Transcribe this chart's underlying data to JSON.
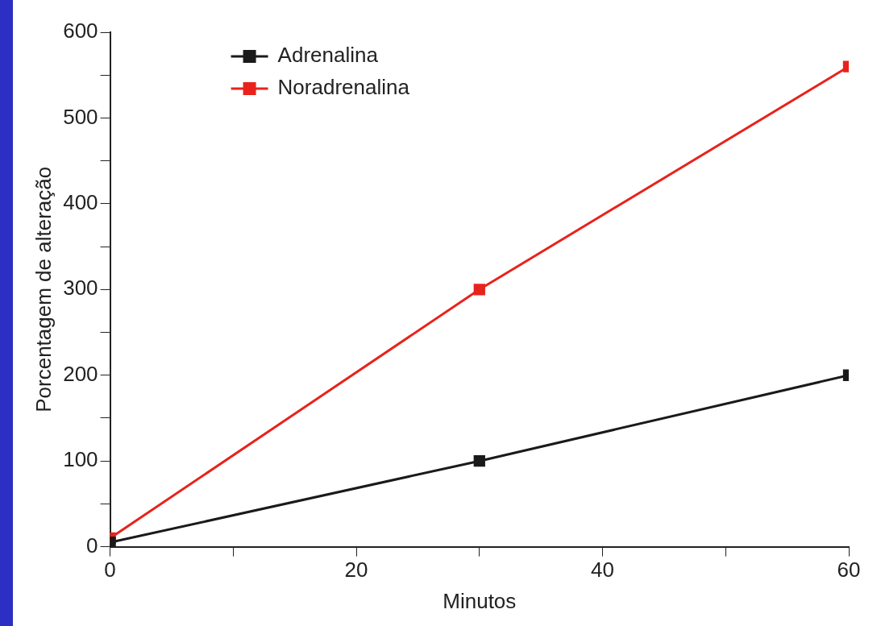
{
  "chart_data": {
    "type": "line",
    "xlabel": "Minutos",
    "ylabel": "Porcentagem de alteração",
    "x": [
      0,
      30,
      60
    ],
    "series": [
      {
        "name": "Adrenalina",
        "color": "#1a1a1a",
        "values": [
          5,
          100,
          200
        ]
      },
      {
        "name": "Noradrenalina",
        "color": "#e8231c",
        "values": [
          10,
          300,
          560
        ]
      }
    ],
    "xlim": [
      0,
      60
    ],
    "xticks": [
      0,
      {
        "value": 10,
        "label": null
      },
      20,
      {
        "value": 30,
        "label": null
      },
      40,
      {
        "value": 50,
        "label": null
      },
      60
    ],
    "ylim": [
      0,
      600
    ],
    "yticks": [
      0,
      {
        "value": 50,
        "label": null
      },
      100,
      {
        "value": 150,
        "label": null
      },
      200,
      {
        "value": 250,
        "label": null
      },
      300,
      {
        "value": 350,
        "label": null
      },
      400,
      {
        "value": 450,
        "label": null
      },
      500,
      {
        "value": 550,
        "label": null
      },
      600
    ],
    "grid": false,
    "legend": "top left",
    "marker": "square",
    "line_style": "solid"
  }
}
